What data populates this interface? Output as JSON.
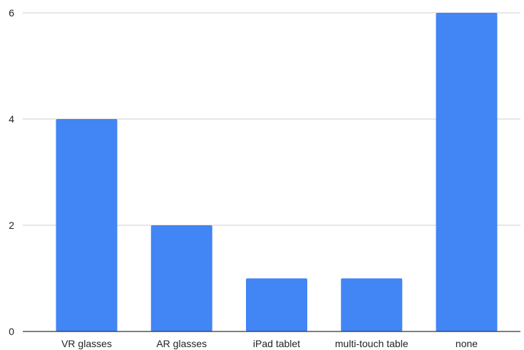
{
  "chart_data": {
    "type": "bar",
    "title": "",
    "xlabel": "",
    "ylabel": "",
    "categories": [
      "VR glasses",
      "AR glasses",
      "iPad tablet",
      "multi-touch table",
      "none"
    ],
    "series": [
      {
        "values": [
          4,
          2,
          1,
          1,
          6
        ]
      }
    ],
    "ylim": [
      0,
      6
    ],
    "yticks": [
      0,
      2,
      4,
      6
    ],
    "grid": true,
    "legend": "none",
    "colors": {
      "bar": "#4285f4",
      "grid": "#cccccc",
      "axis": "#333333",
      "text": "#222222"
    }
  }
}
